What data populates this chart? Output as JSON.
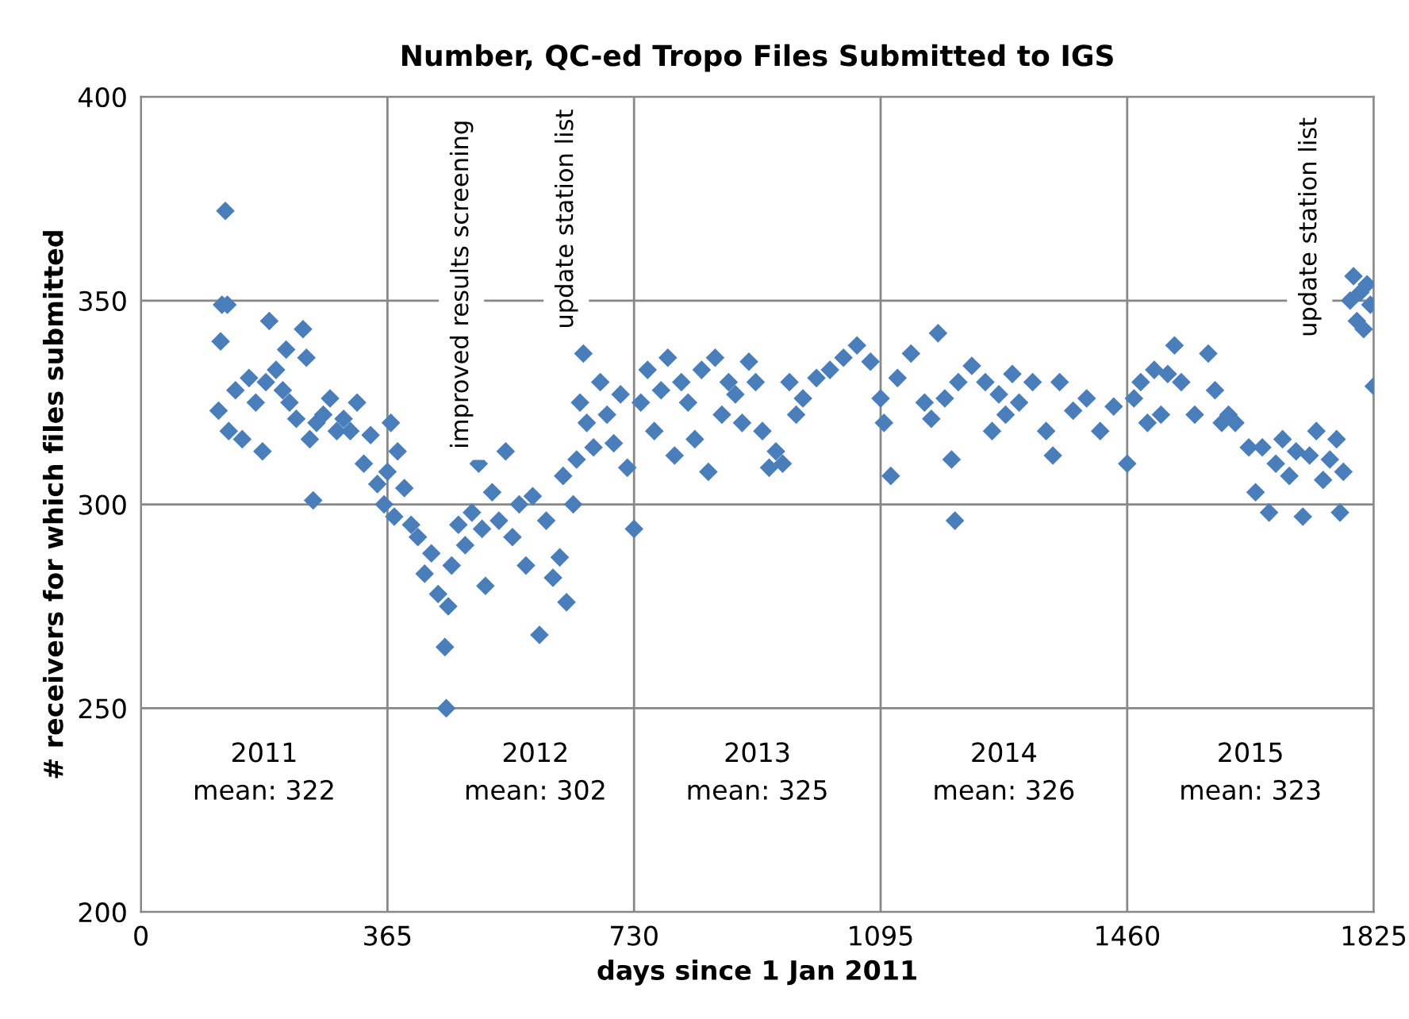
{
  "chart_data": {
    "type": "scatter",
    "title": "Number, QC-ed Tropo Files Submitted to IGS",
    "xlabel": "days since 1 Jan 2011",
    "ylabel": "# receivers for which files submitted",
    "xlim": [
      0,
      1825
    ],
    "xticks": [
      0,
      365,
      730,
      1095,
      1460,
      1825
    ],
    "ylim": [
      200,
      400
    ],
    "yticks": [
      200,
      250,
      300,
      350,
      400
    ],
    "grid": true,
    "marker": "diamond",
    "series": [
      {
        "color": "#4a7ebb",
        "x": [
          115,
          118,
          120,
          125,
          128,
          130,
          140,
          150,
          160,
          170,
          180,
          185,
          190,
          200,
          210,
          215,
          220,
          230,
          240,
          245,
          250,
          255,
          260,
          270,
          280,
          290,
          300,
          310,
          320,
          330,
          340,
          350,
          360,
          365,
          370,
          375,
          380,
          390,
          400,
          410,
          420,
          430,
          440,
          450,
          452,
          455,
          460,
          470,
          480,
          490,
          500,
          505,
          510,
          520,
          530,
          540,
          550,
          560,
          570,
          580,
          590,
          600,
          610,
          620,
          625,
          630,
          640,
          645,
          650,
          655,
          660,
          670,
          680,
          690,
          700,
          710,
          720,
          730,
          740,
          750,
          760,
          770,
          780,
          790,
          800,
          810,
          820,
          830,
          840,
          850,
          860,
          870,
          880,
          890,
          900,
          910,
          920,
          930,
          940,
          950,
          960,
          970,
          980,
          1000,
          1020,
          1040,
          1060,
          1080,
          1095,
          1100,
          1110,
          1120,
          1140,
          1160,
          1170,
          1180,
          1190,
          1200,
          1205,
          1210,
          1230,
          1250,
          1260,
          1270,
          1280,
          1290,
          1300,
          1320,
          1340,
          1350,
          1360,
          1380,
          1400,
          1420,
          1440,
          1460,
          1470,
          1480,
          1490,
          1500,
          1510,
          1520,
          1530,
          1540,
          1560,
          1580,
          1590,
          1600,
          1610,
          1620,
          1640,
          1650,
          1660,
          1670,
          1680,
          1690,
          1700,
          1710,
          1720,
          1730,
          1740,
          1750,
          1760,
          1770,
          1775,
          1780,
          1790,
          1795,
          1800,
          1805,
          1810,
          1815,
          1820,
          1825
        ],
        "values": [
          323,
          340,
          349,
          372,
          349,
          318,
          328,
          316,
          331,
          325,
          313,
          330,
          345,
          333,
          328,
          338,
          325,
          321,
          343,
          336,
          316,
          301,
          320,
          322,
          326,
          318,
          321,
          318,
          325,
          310,
          317,
          305,
          300,
          308,
          320,
          297,
          313,
          304,
          295,
          292,
          283,
          288,
          278,
          265,
          250,
          275,
          285,
          295,
          290,
          298,
          310,
          294,
          280,
          303,
          296,
          313,
          292,
          300,
          285,
          302,
          268,
          296,
          282,
          287,
          307,
          276,
          300,
          311,
          325,
          337,
          320,
          314,
          330,
          322,
          315,
          327,
          309,
          294,
          325,
          333,
          318,
          328,
          336,
          312,
          330,
          325,
          316,
          333,
          308,
          336,
          322,
          330,
          327,
          320,
          335,
          330,
          318,
          309,
          313,
          310,
          330,
          322,
          326,
          331,
          333,
          336,
          339,
          335,
          326,
          320,
          307,
          331,
          337,
          325,
          321,
          342,
          326,
          311,
          296,
          330,
          334,
          330,
          318,
          327,
          322,
          332,
          325,
          330,
          318,
          312,
          330,
          323,
          326,
          318,
          324,
          310,
          326,
          330,
          320,
          333,
          322,
          332,
          339,
          330,
          322,
          337,
          328,
          320,
          322,
          320,
          314,
          303,
          314,
          298,
          310,
          316,
          307,
          313,
          297,
          312,
          318,
          306,
          311,
          316,
          298,
          308,
          350,
          356,
          345,
          352,
          343,
          354,
          349,
          329
        ]
      }
    ],
    "annotations": [
      "improved results screening",
      "update station list",
      "update station list",
      "2011\nmean: 322",
      "2012\nmean: 302",
      "2013\nmean: 325",
      "2014\nmean: 326",
      "2015\nmean: 323"
    ]
  }
}
